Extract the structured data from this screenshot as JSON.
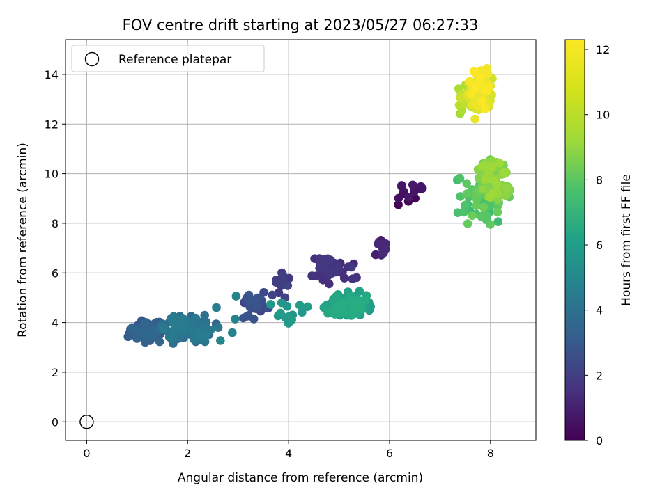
{
  "chart_data": {
    "type": "scatter",
    "title": "FOV centre drift starting at 2023/05/27 06:27:33",
    "xlabel": "Angular distance from reference (arcmin)",
    "ylabel": "Rotation from reference (arcmin)",
    "xlim": [
      -0.42,
      8.9
    ],
    "ylim": [
      -0.75,
      15.4
    ],
    "xticks": [
      0,
      2,
      4,
      6,
      8
    ],
    "yticks": [
      0,
      2,
      4,
      6,
      8,
      10,
      12,
      14
    ],
    "grid": true,
    "legend": {
      "location": "upper-left",
      "entries": [
        "Reference platepar"
      ]
    },
    "reference_point": {
      "x": 0,
      "y": 0,
      "label": "Reference platepar"
    },
    "colorbar": {
      "label": "Hours from first FF file",
      "colormap": "viridis",
      "range": [
        0,
        12.3
      ],
      "ticks": [
        0,
        2,
        4,
        6,
        8,
        10,
        12
      ]
    },
    "clusters": [
      {
        "hours": [
          0.0,
          0.9
        ],
        "x": [
          6.05,
          6.8
        ],
        "y": [
          8.5,
          9.8
        ],
        "n": 16
      },
      {
        "hours": [
          0.9,
          1.5
        ],
        "x": [
          5.6,
          6.05
        ],
        "y": [
          6.2,
          8.0
        ],
        "n": 12
      },
      {
        "hours": [
          1.4,
          2.1
        ],
        "x": [
          4.1,
          5.6
        ],
        "y": [
          5.4,
          6.8
        ],
        "n": 45
      },
      {
        "hours": [
          2.0,
          2.6
        ],
        "x": [
          3.6,
          4.2
        ],
        "y": [
          4.8,
          6.2
        ],
        "n": 12
      },
      {
        "hours": [
          2.4,
          3.3
        ],
        "x": [
          2.9,
          3.8
        ],
        "y": [
          4.0,
          5.5
        ],
        "n": 32
      },
      {
        "hours": [
          3.3,
          4.2
        ],
        "x": [
          0.7,
          1.7
        ],
        "y": [
          3.0,
          4.3
        ],
        "n": 80
      },
      {
        "hours": [
          4.0,
          5.2
        ],
        "x": [
          1.3,
          2.7
        ],
        "y": [
          2.9,
          4.5
        ],
        "n": 100
      },
      {
        "hours": [
          5.2,
          5.6
        ],
        "x": [
          2.3,
          3.2
        ],
        "y": [
          2.7,
          5.7
        ],
        "n": 5
      },
      {
        "hours": [
          6.3,
          7.0
        ],
        "x": [
          3.5,
          4.6
        ],
        "y": [
          3.7,
          5.2
        ],
        "n": 14
      },
      {
        "hours": [
          6.8,
          7.7
        ],
        "x": [
          4.6,
          5.8
        ],
        "y": [
          3.9,
          5.4
        ],
        "n": 110
      },
      {
        "hours": [
          8.2,
          9.6
        ],
        "x": [
          7.2,
          8.3
        ],
        "y": [
          7.6,
          10.4
        ],
        "n": 60
      },
      {
        "hours": [
          9.4,
          10.6
        ],
        "x": [
          7.6,
          8.5
        ],
        "y": [
          8.7,
          11.0
        ],
        "n": 80
      },
      {
        "hours": [
          10.6,
          11.4
        ],
        "x": [
          7.15,
          8.0
        ],
        "y": [
          11.6,
          14.2
        ],
        "n": 18
      },
      {
        "hours": [
          11.4,
          12.3
        ],
        "x": [
          7.4,
          8.2
        ],
        "y": [
          12.0,
          14.7
        ],
        "n": 80
      }
    ]
  }
}
